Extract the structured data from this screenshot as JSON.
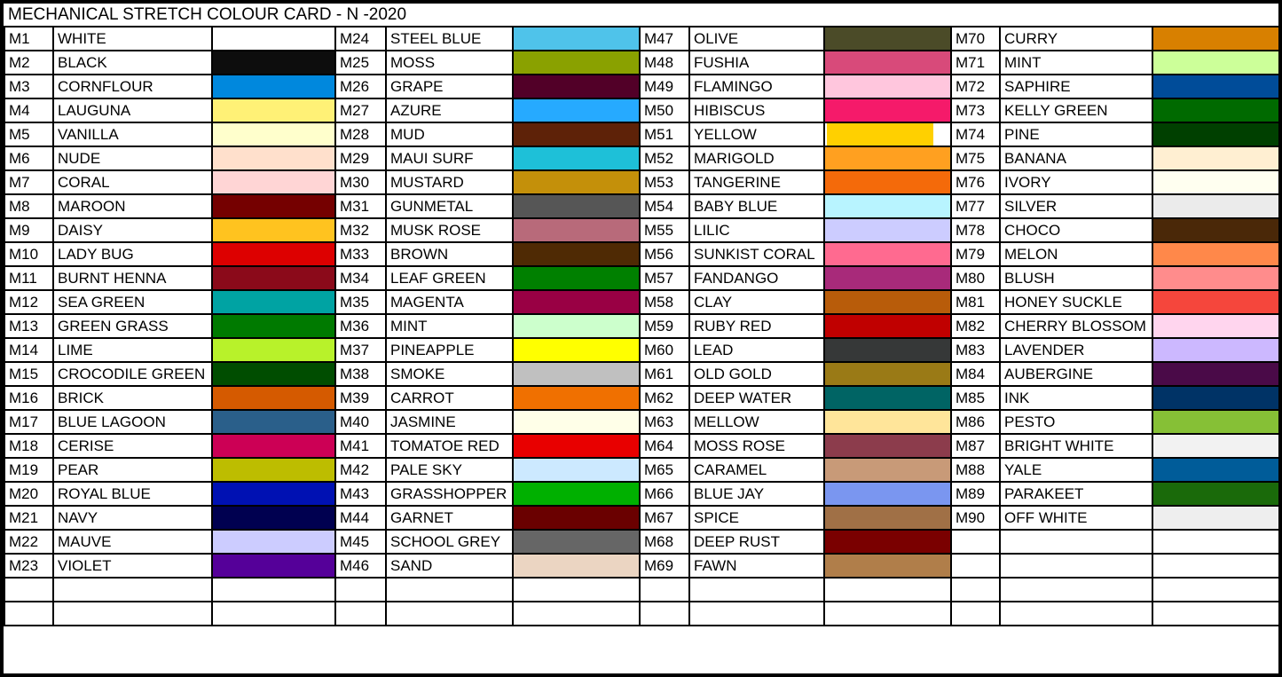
{
  "title": "MECHANICAL STRETCH COLOUR CARD - N -2020",
  "groups": [
    [
      [
        "M1",
        "WHITE",
        "#ffffff"
      ],
      [
        "M2",
        "BLACK",
        "#0d0d0d"
      ],
      [
        "M3",
        "CORNFLOUR",
        "#0088dd"
      ],
      [
        "M4",
        "LAUGUNA",
        "#fff176"
      ],
      [
        "M5",
        "VANILLA",
        "#ffffcc"
      ],
      [
        "M6",
        "NUDE",
        "#ffe0cc"
      ],
      [
        "M7",
        "CORAL",
        "#ffd5d5"
      ],
      [
        "M8",
        "MAROON",
        "#750000"
      ],
      [
        "M9",
        "DAISY",
        "#ffc31f"
      ],
      [
        "M10",
        "LADY BUG",
        "#dd0000"
      ],
      [
        "M11",
        "BURNT HENNA",
        "#8b0a1a"
      ],
      [
        "M12",
        "SEA GREEN",
        "#00a3a3"
      ],
      [
        "M13",
        "GREEN GRASS",
        "#007a00"
      ],
      [
        "M14",
        "LIME",
        "#b8f22a"
      ],
      [
        "M15",
        "CROCODILE GREEN",
        "#004d00"
      ],
      [
        "M16",
        "BRICK",
        "#d55a00"
      ],
      [
        "M17",
        "BLUE LAGOON",
        "#2a5f8a"
      ],
      [
        "M18",
        "CERISE",
        "#cc0055"
      ],
      [
        "M19",
        "PEAR",
        "#bdbd00"
      ],
      [
        "M20",
        "ROYAL BLUE",
        "#0011b3"
      ],
      [
        "M21",
        "NAVY",
        "#000050"
      ],
      [
        "M22",
        "MAUVE",
        "#ccccff"
      ],
      [
        "M23",
        "VIOLET",
        "#550099"
      ]
    ],
    [
      [
        "M24",
        "STEEL BLUE",
        "#4fc3ea"
      ],
      [
        "M25",
        "MOSS",
        "#8aa100"
      ],
      [
        "M26",
        "GRAPE",
        "#520028"
      ],
      [
        "M27",
        "AZURE",
        "#26aaff"
      ],
      [
        "M28",
        "MUD",
        "#5e2208"
      ],
      [
        "M29",
        "MAUI SURF",
        "#1ec0d8"
      ],
      [
        "M30",
        "MUSTARD",
        "#c4900a"
      ],
      [
        "M31",
        "GUNMETAL",
        "#565656"
      ],
      [
        "M32",
        "MUSK ROSE",
        "#b86a7a"
      ],
      [
        "M33",
        "BROWN",
        "#4f2a04"
      ],
      [
        "M34",
        "LEAF GREEN",
        "#008000"
      ],
      [
        "M35",
        "MAGENTA",
        "#990044"
      ],
      [
        "M36",
        "MINT",
        "#ccffcc"
      ],
      [
        "M37",
        "PINEAPPLE",
        "#ffff00"
      ],
      [
        "M38",
        "SMOKE",
        "#c0c0c0"
      ],
      [
        "M39",
        "CARROT",
        "#f07000"
      ],
      [
        "M40",
        "JASMINE",
        "#ffffe8"
      ],
      [
        "M41",
        "TOMATOE RED",
        "#e80000"
      ],
      [
        "M42",
        "PALE SKY",
        "#cce9ff"
      ],
      [
        "M43",
        "GRASSHOPPER",
        "#00b000"
      ],
      [
        "M44",
        "GARNET",
        "#6a0000"
      ],
      [
        "M45",
        "SCHOOL GREY",
        "#666666"
      ],
      [
        "M46",
        "SAND",
        "#ebd5c2"
      ]
    ],
    [
      [
        "M47",
        "OLIVE",
        "#4b4b28"
      ],
      [
        "M48",
        "FUSHIA",
        "#d84a7a"
      ],
      [
        "M49",
        "FLAMINGO",
        "#ffc6dd"
      ],
      [
        "M50",
        "HIBISCUS",
        "#f51a6a"
      ],
      [
        "M51",
        "YELLOW",
        "#ffd000"
      ],
      [
        "M52",
        "MARIGOLD",
        "#ffa020"
      ],
      [
        "M53",
        "TANGERINE",
        "#f46a0a"
      ],
      [
        "M54",
        "BABY BLUE",
        "#b8f4ff"
      ],
      [
        "M55",
        "LILIC",
        "#ccccff"
      ],
      [
        "M56",
        "SUNKIST CORAL",
        "#ff6a90"
      ],
      [
        "M57",
        "FANDANGO",
        "#a82a7a"
      ],
      [
        "M58",
        "CLAY",
        "#b85c0a"
      ],
      [
        "M59",
        "RUBY RED",
        "#c00000"
      ],
      [
        "M60",
        "LEAD",
        "#363838"
      ],
      [
        "M61",
        "OLD GOLD",
        "#9a7a16"
      ],
      [
        "M62",
        "DEEP WATER",
        "#006464"
      ],
      [
        "M63",
        "MELLOW",
        "#ffe59a"
      ],
      [
        "M64",
        "MOSS ROSE",
        "#8c3c4c"
      ],
      [
        "M65",
        "CARAMEL",
        "#c89a78"
      ],
      [
        "M66",
        "BLUE JAY",
        "#7a96f0"
      ],
      [
        "M67",
        "SPICE",
        "#a07046"
      ],
      [
        "M68",
        "DEEP RUST",
        "#7a0000"
      ],
      [
        "M69",
        "FAWN",
        "#b07e4a"
      ]
    ],
    [
      [
        "M70",
        "CURRY",
        "#d88000"
      ],
      [
        "M71",
        "MINT",
        "#ccff99"
      ],
      [
        "M72",
        "SAPHIRE",
        "#004c99"
      ],
      [
        "M73",
        "KELLY GREEN",
        "#006a00"
      ],
      [
        "M74",
        "PINE",
        "#004000"
      ],
      [
        "M75",
        "BANANA",
        "#ffefd2"
      ],
      [
        "M76",
        "IVORY",
        "#fffff0"
      ],
      [
        "M77",
        "SILVER",
        "#ebebeb"
      ],
      [
        "M78",
        "CHOCO",
        "#4a2808"
      ],
      [
        "M79",
        "MELON",
        "#ff884a"
      ],
      [
        "M80",
        "BLUSH",
        "#ff8c8c"
      ],
      [
        "M81",
        "HONEY SUCKLE",
        "#f5463c"
      ],
      [
        "M82",
        "CHERRY BLOSSOM",
        "#ffd5ee"
      ],
      [
        "M83",
        "LAVENDER",
        "#ccb8ff"
      ],
      [
        "M84",
        "AUBERGINE",
        "#4a0a48"
      ],
      [
        "M85",
        "INK",
        "#003366"
      ],
      [
        "M86",
        "PESTO",
        "#86c036"
      ],
      [
        "M87",
        "BRIGHT WHITE",
        "#f2f2f2"
      ],
      [
        "M88",
        "YALE",
        "#005c99"
      ],
      [
        "M89",
        "PARAKEET",
        "#1a6a0a"
      ],
      [
        "M90",
        "OFF WHITE",
        "#eeeeee"
      ]
    ]
  ]
}
